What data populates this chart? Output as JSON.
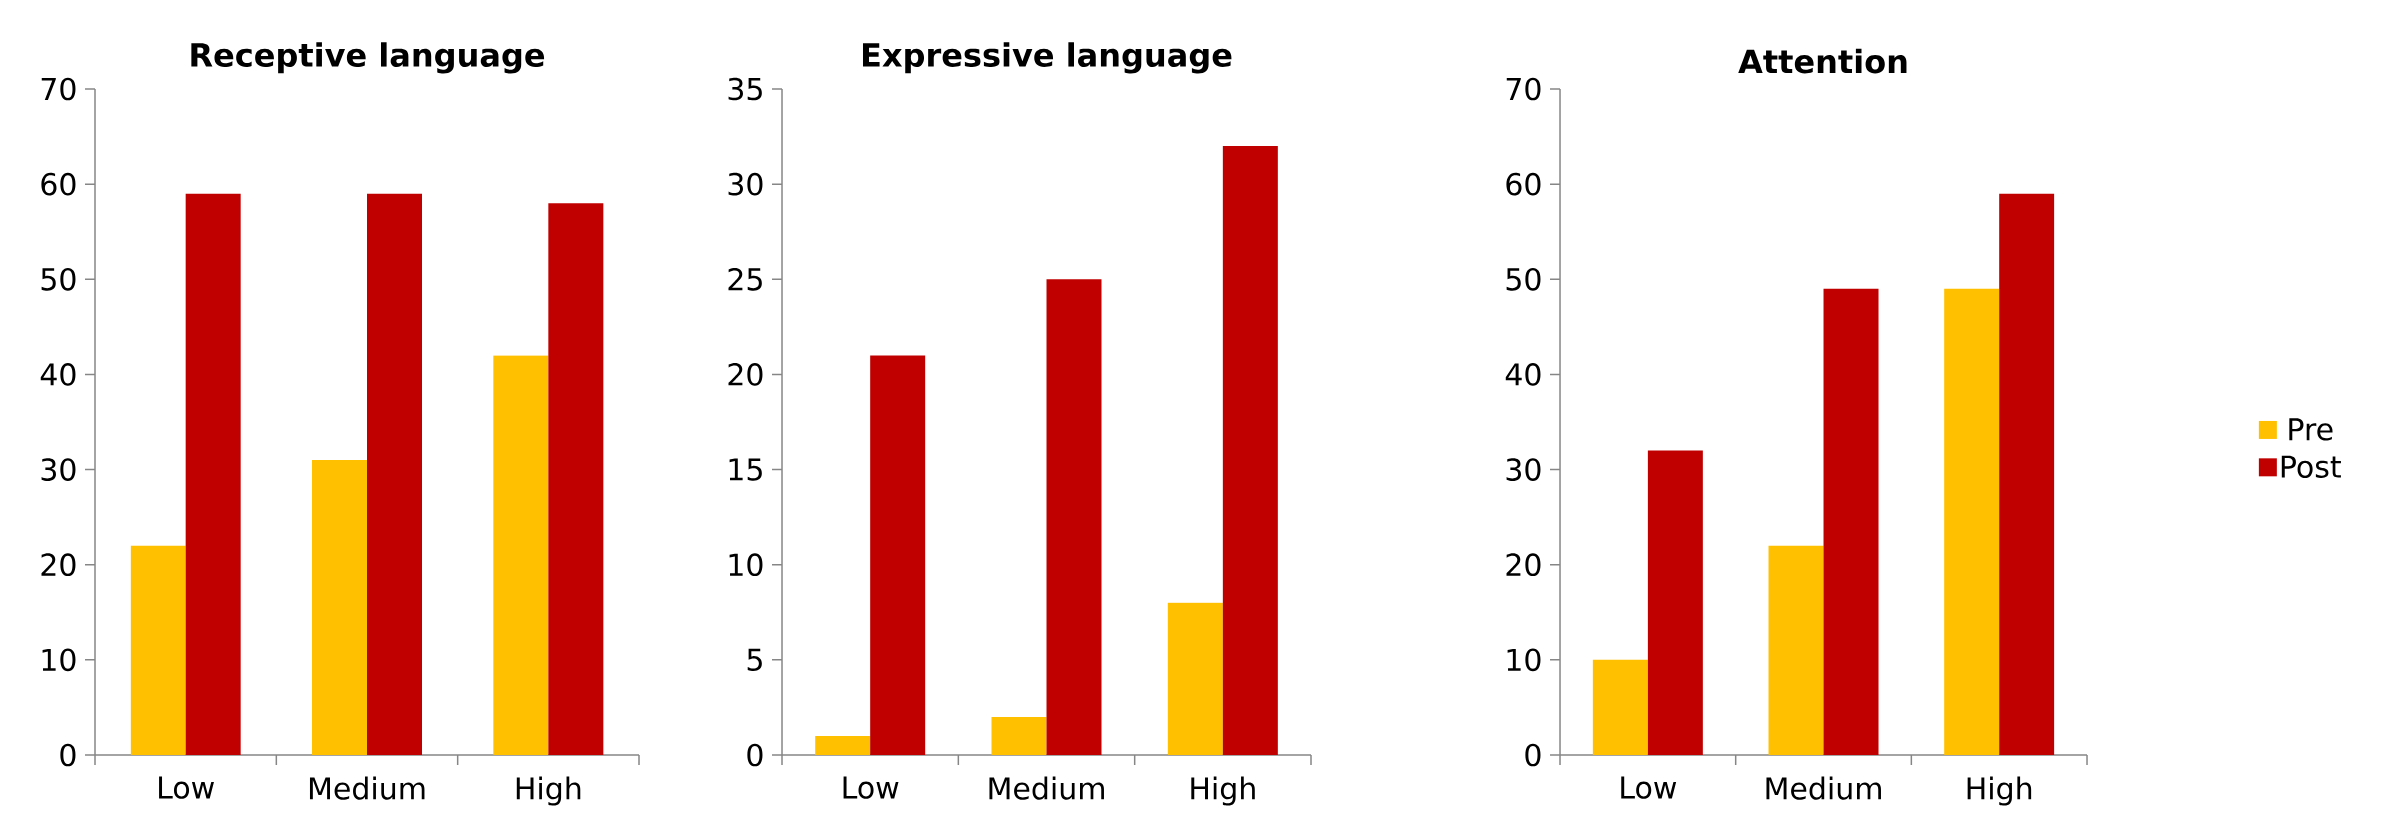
{
  "chart_data": [
    {
      "type": "bar",
      "title": "Receptive language",
      "categories": [
        "Low",
        "Medium",
        "High"
      ],
      "series": [
        {
          "color": "#ffc000",
          "values": [
            22,
            31,
            42
          ]
        },
        {
          "color": "#c00000",
          "values": [
            59,
            59,
            58
          ]
        }
      ],
      "ylim": [
        0,
        70
      ],
      "yticks": [
        0,
        10,
        20,
        30,
        40,
        50,
        60,
        70
      ]
    },
    {
      "type": "bar",
      "title": "Expressive language",
      "categories": [
        "Low",
        "Medium",
        "High"
      ],
      "series": [
        {
          "color": "#ffc000",
          "values": [
            1,
            2,
            8
          ]
        },
        {
          "color": "#c00000",
          "values": [
            21,
            25,
            32
          ]
        }
      ],
      "ylim": [
        0,
        35
      ],
      "yticks": [
        0,
        5,
        10,
        15,
        20,
        25,
        30,
        35
      ]
    },
    {
      "type": "bar",
      "title": "Attention",
      "categories": [
        "Low",
        "Medium",
        "High"
      ],
      "series": [
        {
          "name": "Pre",
          "color": "#ffc000",
          "values": [
            10,
            22,
            49
          ]
        },
        {
          "name": "Post",
          "color": "#c00000",
          "values": [
            32,
            49,
            59
          ]
        }
      ],
      "ylim": [
        0,
        70
      ],
      "yticks": [
        0,
        10,
        20,
        30,
        40,
        50,
        60,
        70
      ],
      "legend": "right"
    }
  ]
}
